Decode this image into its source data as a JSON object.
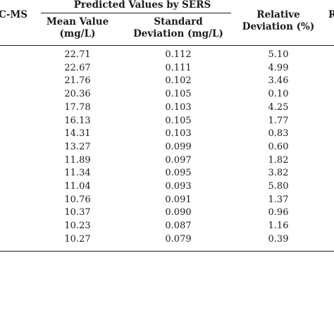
{
  "table": {
    "headers": {
      "gcms_partial": "C-MS",
      "group": "Predicted Values by SERS",
      "mean_line1": "Mean Value",
      "mean_line2": "(mg/L)",
      "sd_line1": "Standard",
      "sd_line2": "Deviation (mg/L)",
      "rd_line1": "Relative",
      "rd_line2": "Deviation (%)",
      "right_partial": "R"
    },
    "rows": [
      {
        "mean": "22.71",
        "sd": "0.112",
        "rd": "5.10"
      },
      {
        "mean": "22.67",
        "sd": "0.111",
        "rd": "4.99"
      },
      {
        "mean": "21.76",
        "sd": "0.102",
        "rd": "3.46"
      },
      {
        "mean": "20.36",
        "sd": "0.105",
        "rd": "0.10"
      },
      {
        "mean": "17.78",
        "sd": "0.103",
        "rd": "4.25"
      },
      {
        "mean": "16.13",
        "sd": "0.105",
        "rd": "1.77"
      },
      {
        "mean": "14.31",
        "sd": "0.103",
        "rd": "0.83"
      },
      {
        "mean": "13.27",
        "sd": "0.099",
        "rd": "0.60"
      },
      {
        "mean": "11.89",
        "sd": "0.097",
        "rd": "1.82"
      },
      {
        "mean": "11.34",
        "sd": "0.095",
        "rd": "3.82"
      },
      {
        "mean": "11.04",
        "sd": "0.093",
        "rd": "5.80"
      },
      {
        "mean": "10.76",
        "sd": "0.091",
        "rd": "1.37"
      },
      {
        "mean": "10.37",
        "sd": "0.090",
        "rd": "0.96"
      },
      {
        "mean": "10.23",
        "sd": "0.087",
        "rd": "1.16"
      },
      {
        "mean": "10.27",
        "sd": "0.079",
        "rd": "0.39"
      }
    ]
  }
}
